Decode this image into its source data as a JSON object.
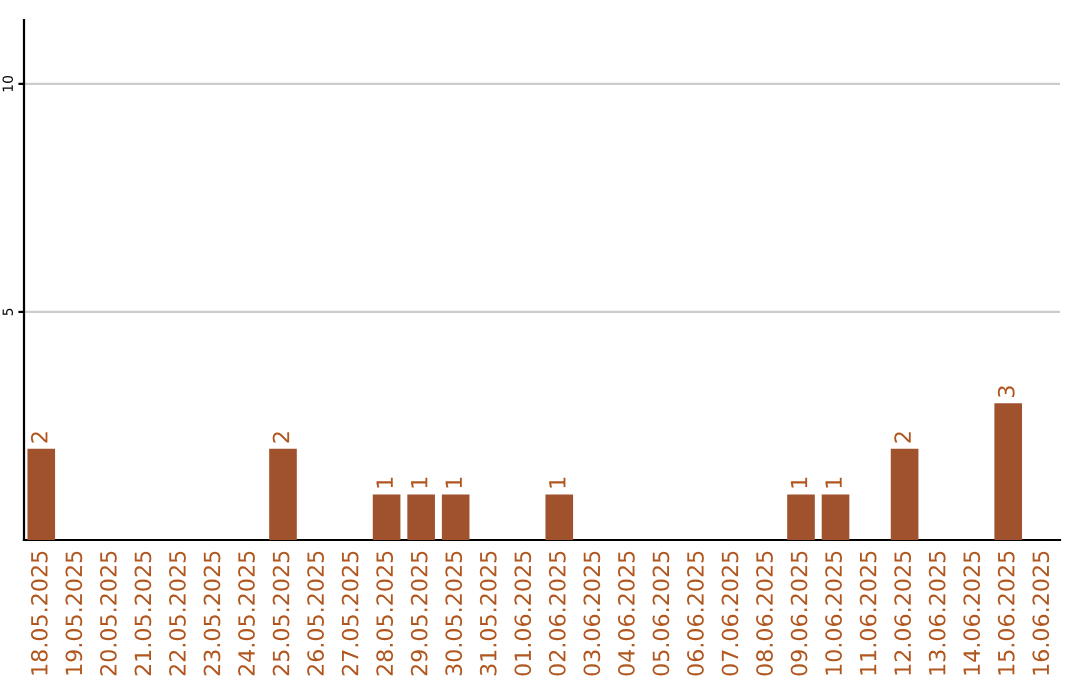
{
  "chart_data": {
    "type": "bar",
    "categories": [
      "18.05.2025",
      "19.05.2025",
      "20.05.2025",
      "21.05.2025",
      "22.05.2025",
      "23.05.2025",
      "24.05.2025",
      "25.05.2025",
      "26.05.2025",
      "27.05.2025",
      "28.05.2025",
      "29.05.2025",
      "30.05.2025",
      "31.05.2025",
      "01.06.2025",
      "02.06.2025",
      "03.06.2025",
      "04.06.2025",
      "05.06.2025",
      "06.06.2025",
      "07.06.2025",
      "08.06.2025",
      "09.06.2025",
      "10.06.2025",
      "11.06.2025",
      "12.06.2025",
      "13.06.2025",
      "14.06.2025",
      "15.06.2025",
      "16.06.2025"
    ],
    "values": [
      2,
      0,
      0,
      0,
      0,
      0,
      0,
      2,
      0,
      0,
      1,
      1,
      1,
      0,
      0,
      1,
      0,
      0,
      0,
      0,
      0,
      0,
      1,
      1,
      0,
      2,
      0,
      0,
      3,
      0
    ],
    "value_labels": [
      "2",
      null,
      null,
      null,
      null,
      null,
      null,
      "2",
      null,
      null,
      "1",
      "1",
      "1",
      null,
      null,
      "1",
      null,
      null,
      null,
      null,
      null,
      null,
      "1",
      "1",
      null,
      "2",
      null,
      null,
      "3",
      null
    ],
    "color": "#a0522d",
    "ylim": [
      0,
      11.4
    ],
    "yticks": [
      5,
      10
    ],
    "grid": "y"
  }
}
